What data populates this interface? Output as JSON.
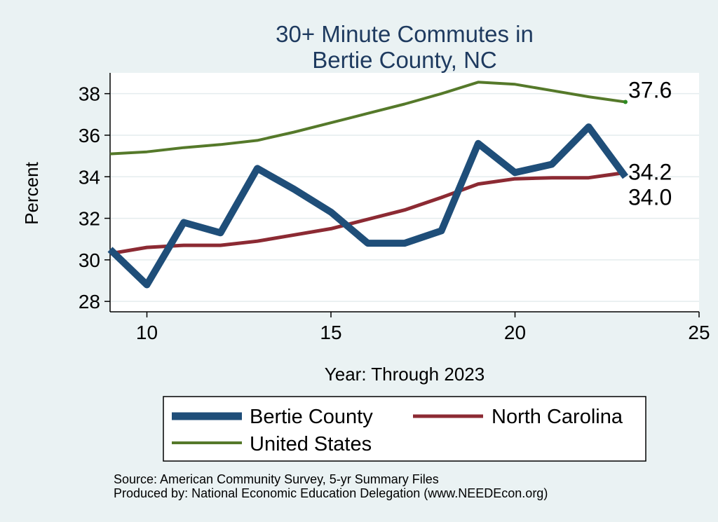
{
  "chart_data": {
    "type": "line",
    "title": [
      "30+ Minute Commutes in",
      "Bertie County, NC"
    ],
    "xlabel": "Year: Through 2023",
    "ylabel": "Percent",
    "xlim": [
      9,
      25
    ],
    "ylim": [
      27.5,
      39
    ],
    "xticks": [
      10,
      15,
      20,
      25
    ],
    "yticks": [
      28,
      30,
      32,
      34,
      36,
      38
    ],
    "grid": true,
    "legend_position": "bottom",
    "series": [
      {
        "name": "Bertie County",
        "color": "#1f4e79",
        "x": [
          9,
          10,
          11,
          12,
          13,
          14,
          15,
          16,
          17,
          18,
          19,
          20,
          21,
          22,
          23
        ],
        "values": [
          30.5,
          28.8,
          31.8,
          31.3,
          34.4,
          33.4,
          32.3,
          30.8,
          30.8,
          31.4,
          35.6,
          34.2,
          34.6,
          36.4,
          34.0
        ]
      },
      {
        "name": "North Carolina",
        "color": "#8c2a33",
        "x": [
          9,
          10,
          11,
          12,
          13,
          14,
          15,
          16,
          17,
          18,
          19,
          20,
          21,
          22,
          23
        ],
        "values": [
          30.3,
          30.6,
          30.7,
          30.7,
          30.9,
          31.2,
          31.5,
          31.95,
          32.4,
          33.0,
          33.65,
          33.9,
          33.95,
          33.95,
          34.2
        ]
      },
      {
        "name": "United States",
        "color": "#55792a",
        "x": [
          9,
          10,
          11,
          12,
          13,
          14,
          15,
          16,
          17,
          18,
          19,
          20,
          21,
          22,
          23
        ],
        "values": [
          35.1,
          35.2,
          35.4,
          35.55,
          35.75,
          36.15,
          36.6,
          37.05,
          37.5,
          38.0,
          38.55,
          38.45,
          38.15,
          37.85,
          37.6
        ]
      }
    ],
    "end_labels": [
      {
        "text": "37.6",
        "value": 37.6,
        "series": 2
      },
      {
        "text": "34.2",
        "value": 34.2,
        "series": 1
      },
      {
        "text": "34.0",
        "value": 34.0,
        "series": 0
      }
    ],
    "source_lines": [
      "Source: American Community Survey, 5-yr Summary Files",
      "Produced by: National Economic Education Delegation (www.NEEDEcon.org)"
    ]
  }
}
